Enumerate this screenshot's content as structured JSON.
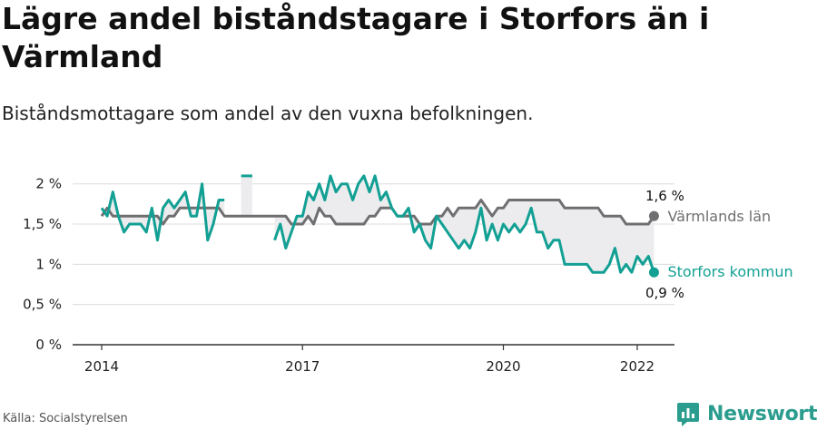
{
  "header": {
    "title": "Lägre andel biståndstagare i Storfors än i Värmland",
    "subtitle": "Biståndsmottagare som andel av den vuxna befolkningen."
  },
  "footer": {
    "source": "Källa: Socialstyrelsen",
    "brand": "Newsworthy"
  },
  "colors": {
    "storfors": "#13a094",
    "varmland": "#6f6f72",
    "band": "#ececee",
    "grid": "#dcdcdc",
    "axis": "#333333"
  },
  "icons": {
    "brand": "newsworthy-logo-icon"
  },
  "chart_data": {
    "type": "line",
    "x_unit": "month",
    "x_start": "2014-01",
    "x_end": "2022-04",
    "ylim": [
      0,
      2.2
    ],
    "yticks": [
      0,
      0.5,
      1,
      1.5,
      2
    ],
    "ytick_labels": [
      "0 %",
      "0,5 %",
      "1 %",
      "1,5 %",
      "2 %"
    ],
    "xticks": [
      "2014-01",
      "2017-01",
      "2020-01",
      "2022-01"
    ],
    "xtick_labels": [
      "2014",
      "2017",
      "2020",
      "2022"
    ],
    "grid": true,
    "series": [
      {
        "name": "Värmlands län",
        "key": "varmland",
        "end_label": "1,6 %",
        "points": [
          [
            "2014-01",
            1.6
          ],
          [
            "2014-02",
            1.7
          ],
          [
            "2014-03",
            1.6
          ],
          [
            "2014-04",
            1.6
          ],
          [
            "2014-05",
            1.6
          ],
          [
            "2014-06",
            1.6
          ],
          [
            "2014-07",
            1.6
          ],
          [
            "2014-08",
            1.6
          ],
          [
            "2014-09",
            1.6
          ],
          [
            "2014-10",
            1.6
          ],
          [
            "2014-11",
            1.6
          ],
          [
            "2014-12",
            1.5
          ],
          [
            "2015-01",
            1.6
          ],
          [
            "2015-02",
            1.6
          ],
          [
            "2015-03",
            1.7
          ],
          [
            "2015-04",
            1.7
          ],
          [
            "2015-05",
            1.7
          ],
          [
            "2015-06",
            1.7
          ],
          [
            "2015-07",
            1.7
          ],
          [
            "2015-08",
            1.7
          ],
          [
            "2015-09",
            1.7
          ],
          [
            "2015-10",
            1.7
          ],
          [
            "2015-11",
            1.6
          ],
          [
            "2015-12",
            1.6
          ],
          [
            "2016-01",
            1.6
          ],
          [
            "2016-02",
            1.6
          ],
          [
            "2016-03",
            1.6
          ],
          [
            "2016-04",
            1.6
          ],
          [
            "2016-05",
            1.6
          ],
          [
            "2016-06",
            1.6
          ],
          [
            "2016-07",
            1.6
          ],
          [
            "2016-08",
            1.6
          ],
          [
            "2016-09",
            1.6
          ],
          [
            "2016-10",
            1.6
          ],
          [
            "2016-11",
            1.5
          ],
          [
            "2016-12",
            1.5
          ],
          [
            "2017-01",
            1.5
          ],
          [
            "2017-02",
            1.6
          ],
          [
            "2017-03",
            1.5
          ],
          [
            "2017-04",
            1.7
          ],
          [
            "2017-05",
            1.6
          ],
          [
            "2017-06",
            1.6
          ],
          [
            "2017-07",
            1.5
          ],
          [
            "2017-08",
            1.5
          ],
          [
            "2017-09",
            1.5
          ],
          [
            "2017-10",
            1.5
          ],
          [
            "2017-11",
            1.5
          ],
          [
            "2017-12",
            1.5
          ],
          [
            "2018-01",
            1.6
          ],
          [
            "2018-02",
            1.6
          ],
          [
            "2018-03",
            1.7
          ],
          [
            "2018-04",
            1.7
          ],
          [
            "2018-05",
            1.7
          ],
          [
            "2018-06",
            1.6
          ],
          [
            "2018-07",
            1.6
          ],
          [
            "2018-08",
            1.6
          ],
          [
            "2018-09",
            1.6
          ],
          [
            "2018-10",
            1.5
          ],
          [
            "2018-11",
            1.5
          ],
          [
            "2018-12",
            1.5
          ],
          [
            "2019-01",
            1.6
          ],
          [
            "2019-02",
            1.6
          ],
          [
            "2019-03",
            1.7
          ],
          [
            "2019-04",
            1.6
          ],
          [
            "2019-05",
            1.7
          ],
          [
            "2019-06",
            1.7
          ],
          [
            "2019-07",
            1.7
          ],
          [
            "2019-08",
            1.7
          ],
          [
            "2019-09",
            1.8
          ],
          [
            "2019-10",
            1.7
          ],
          [
            "2019-11",
            1.6
          ],
          [
            "2019-12",
            1.7
          ],
          [
            "2020-01",
            1.7
          ],
          [
            "2020-02",
            1.8
          ],
          [
            "2020-03",
            1.8
          ],
          [
            "2020-04",
            1.8
          ],
          [
            "2020-05",
            1.8
          ],
          [
            "2020-06",
            1.8
          ],
          [
            "2020-07",
            1.8
          ],
          [
            "2020-08",
            1.8
          ],
          [
            "2020-09",
            1.8
          ],
          [
            "2020-10",
            1.8
          ],
          [
            "2020-11",
            1.8
          ],
          [
            "2020-12",
            1.7
          ],
          [
            "2021-01",
            1.7
          ],
          [
            "2021-02",
            1.7
          ],
          [
            "2021-03",
            1.7
          ],
          [
            "2021-04",
            1.7
          ],
          [
            "2021-05",
            1.7
          ],
          [
            "2021-06",
            1.7
          ],
          [
            "2021-07",
            1.6
          ],
          [
            "2021-08",
            1.6
          ],
          [
            "2021-09",
            1.6
          ],
          [
            "2021-10",
            1.6
          ],
          [
            "2021-11",
            1.5
          ],
          [
            "2021-12",
            1.5
          ],
          [
            "2022-01",
            1.5
          ],
          [
            "2022-02",
            1.5
          ],
          [
            "2022-03",
            1.5
          ],
          [
            "2022-04",
            1.6
          ]
        ]
      },
      {
        "name": "Storfors kommun",
        "key": "storfors",
        "end_label": "0,9 %",
        "points": [
          [
            "2014-01",
            1.7
          ],
          [
            "2014-02",
            1.6
          ],
          [
            "2014-03",
            1.9
          ],
          [
            "2014-04",
            1.6
          ],
          [
            "2014-05",
            1.4
          ],
          [
            "2014-06",
            1.5
          ],
          [
            "2014-07",
            1.5
          ],
          [
            "2014-08",
            1.5
          ],
          [
            "2014-09",
            1.4
          ],
          [
            "2014-10",
            1.7
          ],
          [
            "2014-11",
            1.3
          ],
          [
            "2014-12",
            1.7
          ],
          [
            "2015-01",
            1.8
          ],
          [
            "2015-02",
            1.7
          ],
          [
            "2015-03",
            1.8
          ],
          [
            "2015-04",
            1.9
          ],
          [
            "2015-05",
            1.6
          ],
          [
            "2015-06",
            1.6
          ],
          [
            "2015-07",
            2.0
          ],
          [
            "2015-08",
            1.3
          ],
          [
            "2015-09",
            1.5
          ],
          [
            "2015-10",
            1.8
          ],
          [
            "2015-11",
            1.8
          ],
          [
            "2015-12",
            null
          ],
          [
            "2016-01",
            null
          ],
          [
            "2016-02",
            2.1
          ],
          [
            "2016-03",
            2.1
          ],
          [
            "2016-04",
            2.1
          ],
          [
            "2016-05",
            null
          ],
          [
            "2016-06",
            null
          ],
          [
            "2016-07",
            null
          ],
          [
            "2016-08",
            1.3
          ],
          [
            "2016-09",
            1.5
          ],
          [
            "2016-10",
            1.2
          ],
          [
            "2016-11",
            1.4
          ],
          [
            "2016-12",
            1.6
          ],
          [
            "2017-01",
            1.6
          ],
          [
            "2017-02",
            1.9
          ],
          [
            "2017-03",
            1.8
          ],
          [
            "2017-04",
            2.0
          ],
          [
            "2017-05",
            1.8
          ],
          [
            "2017-06",
            2.1
          ],
          [
            "2017-07",
            1.9
          ],
          [
            "2017-08",
            2.0
          ],
          [
            "2017-09",
            2.0
          ],
          [
            "2017-10",
            1.8
          ],
          [
            "2017-11",
            2.0
          ],
          [
            "2017-12",
            2.1
          ],
          [
            "2018-01",
            1.9
          ],
          [
            "2018-02",
            2.1
          ],
          [
            "2018-03",
            1.8
          ],
          [
            "2018-04",
            1.9
          ],
          [
            "2018-05",
            1.7
          ],
          [
            "2018-06",
            1.6
          ],
          [
            "2018-07",
            1.6
          ],
          [
            "2018-08",
            1.7
          ],
          [
            "2018-09",
            1.4
          ],
          [
            "2018-10",
            1.5
          ],
          [
            "2018-11",
            1.3
          ],
          [
            "2018-12",
            1.2
          ],
          [
            "2019-01",
            1.6
          ],
          [
            "2019-02",
            1.5
          ],
          [
            "2019-03",
            1.4
          ],
          [
            "2019-04",
            1.3
          ],
          [
            "2019-05",
            1.2
          ],
          [
            "2019-06",
            1.3
          ],
          [
            "2019-07",
            1.2
          ],
          [
            "2019-08",
            1.4
          ],
          [
            "2019-09",
            1.7
          ],
          [
            "2019-10",
            1.3
          ],
          [
            "2019-11",
            1.5
          ],
          [
            "2019-12",
            1.3
          ],
          [
            "2020-01",
            1.5
          ],
          [
            "2020-02",
            1.4
          ],
          [
            "2020-03",
            1.5
          ],
          [
            "2020-04",
            1.4
          ],
          [
            "2020-05",
            1.5
          ],
          [
            "2020-06",
            1.7
          ],
          [
            "2020-07",
            1.4
          ],
          [
            "2020-08",
            1.4
          ],
          [
            "2020-09",
            1.2
          ],
          [
            "2020-10",
            1.3
          ],
          [
            "2020-11",
            1.3
          ],
          [
            "2020-12",
            1.0
          ],
          [
            "2021-01",
            1.0
          ],
          [
            "2021-02",
            1.0
          ],
          [
            "2021-03",
            1.0
          ],
          [
            "2021-04",
            1.0
          ],
          [
            "2021-05",
            0.9
          ],
          [
            "2021-06",
            0.9
          ],
          [
            "2021-07",
            0.9
          ],
          [
            "2021-08",
            1.0
          ],
          [
            "2021-09",
            1.2
          ],
          [
            "2021-10",
            0.9
          ],
          [
            "2021-11",
            1.0
          ],
          [
            "2021-12",
            0.9
          ],
          [
            "2022-01",
            1.1
          ],
          [
            "2022-02",
            1.0
          ],
          [
            "2022-03",
            1.1
          ],
          [
            "2022-04",
            0.9
          ]
        ]
      }
    ]
  }
}
